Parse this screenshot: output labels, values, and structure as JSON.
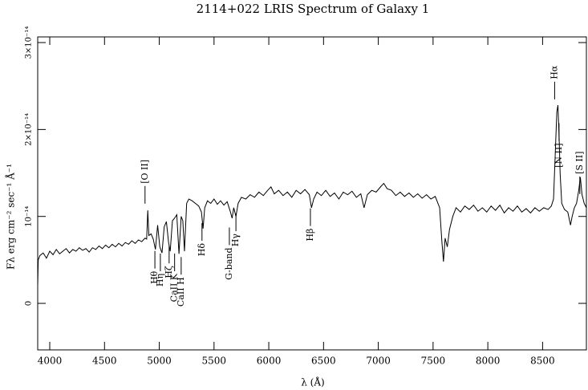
{
  "chart_data": {
    "type": "line",
    "title": "2114+022 LRIS Spectrum of Galaxy 1",
    "x_label": "λ (Å)",
    "y_label": "Fλ  erg cm⁻² sec⁻¹  Å⁻¹",
    "xlim": [
      3890,
      8900
    ],
    "ylim": [
      -5.35e-15,
      3.065e-14
    ],
    "xticks": [
      4000,
      4500,
      5000,
      5500,
      6000,
      6500,
      7000,
      7500,
      8000,
      8500
    ],
    "yticks": [
      0,
      {
        "value": 1e-14,
        "label": "10⁻¹⁴"
      },
      {
        "value": 2e-14,
        "label": "2×10⁻¹⁴"
      },
      {
        "value": 3e-14,
        "label": "3×10⁻¹⁴"
      }
    ],
    "color": "#000000",
    "x": [
      3890,
      3895,
      3910,
      3940,
      3970,
      4000,
      4030,
      4060,
      4090,
      4120,
      4150,
      4180,
      4210,
      4240,
      4270,
      4300,
      4330,
      4360,
      4390,
      4420,
      4450,
      4480,
      4510,
      4540,
      4570,
      4600,
      4630,
      4660,
      4690,
      4720,
      4750,
      4780,
      4810,
      4840,
      4870,
      4885,
      4895,
      4905,
      4925,
      4945,
      4965,
      4985,
      5005,
      5025,
      5045,
      5065,
      5085,
      5100,
      5120,
      5140,
      5160,
      5180,
      5200,
      5215,
      5230,
      5250,
      5270,
      5300,
      5330,
      5360,
      5385,
      5400,
      5415,
      5440,
      5470,
      5500,
      5530,
      5560,
      5590,
      5620,
      5650,
      5665,
      5680,
      5700,
      5720,
      5750,
      5790,
      5830,
      5870,
      5910,
      5950,
      5990,
      6020,
      6050,
      6090,
      6130,
      6170,
      6210,
      6250,
      6290,
      6330,
      6370,
      6390,
      6410,
      6440,
      6480,
      6520,
      6560,
      6600,
      6640,
      6680,
      6720,
      6760,
      6800,
      6840,
      6870,
      6900,
      6940,
      6980,
      7020,
      7050,
      7080,
      7120,
      7160,
      7200,
      7240,
      7280,
      7320,
      7360,
      7400,
      7440,
      7480,
      7520,
      7560,
      7580,
      7595,
      7610,
      7630,
      7650,
      7680,
      7710,
      7750,
      7790,
      7830,
      7870,
      7910,
      7950,
      7990,
      8030,
      8070,
      8110,
      8150,
      8190,
      8230,
      8270,
      8310,
      8350,
      8390,
      8430,
      8470,
      8510,
      8550,
      8580,
      8600,
      8615,
      8630,
      8640,
      8650,
      8660,
      8675,
      8700,
      8730,
      8755,
      8770,
      8790,
      8810,
      8830,
      8845,
      8860,
      8880,
      8900
    ],
    "values": [
      2e-15,
      5e-15,
      5.5e-15,
      5.8e-15,
      5.2e-15,
      6e-15,
      5.6e-15,
      6.2e-15,
      5.7e-15,
      6e-15,
      6.3e-15,
      5.8e-15,
      6.2e-15,
      6e-15,
      6.4e-15,
      6.1e-15,
      6.3e-15,
      5.9e-15,
      6.4e-15,
      6.2e-15,
      6.6e-15,
      6.3e-15,
      6.7e-15,
      6.4e-15,
      6.8e-15,
      6.5e-15,
      6.9e-15,
      6.6e-15,
      7e-15,
      6.8e-15,
      7.2e-15,
      6.9e-15,
      7.3e-15,
      7.1e-15,
      7.5e-15,
      7.4e-15,
      1.07e-14,
      7.8e-15,
      8e-15,
      7.4e-15,
      6.2e-15,
      9e-15,
      6.5e-15,
      5.8e-15,
      8.8e-15,
      9.4e-15,
      7e-15,
      6e-15,
      9.5e-15,
      9.8e-15,
      1.02e-14,
      5.7e-15,
      1e-14,
      9.5e-15,
      6e-15,
      1.15e-14,
      1.2e-14,
      1.18e-14,
      1.15e-14,
      1.12e-14,
      1.05e-14,
      8.6e-15,
      1.1e-14,
      1.18e-14,
      1.15e-14,
      1.2e-14,
      1.14e-14,
      1.18e-14,
      1.13e-14,
      1.17e-14,
      1.05e-14,
      9.8e-15,
      1.1e-14,
      1e-14,
      1.15e-14,
      1.22e-14,
      1.2e-14,
      1.25e-14,
      1.22e-14,
      1.28e-14,
      1.24e-14,
      1.3e-14,
      1.34e-14,
      1.26e-14,
      1.3e-14,
      1.24e-14,
      1.28e-14,
      1.22e-14,
      1.3e-14,
      1.26e-14,
      1.31e-14,
      1.25e-14,
      1.1e-14,
      1.2e-14,
      1.28e-14,
      1.24e-14,
      1.3e-14,
      1.23e-14,
      1.27e-14,
      1.2e-14,
      1.28e-14,
      1.25e-14,
      1.29e-14,
      1.22e-14,
      1.26e-14,
      1.1e-14,
      1.25e-14,
      1.3e-14,
      1.28e-14,
      1.34e-14,
      1.38e-14,
      1.32e-14,
      1.3e-14,
      1.24e-14,
      1.28e-14,
      1.23e-14,
      1.27e-14,
      1.22e-14,
      1.26e-14,
      1.21e-14,
      1.25e-14,
      1.2e-14,
      1.23e-14,
      1.1e-14,
      7.2e-15,
      4.8e-15,
      7.5e-15,
      6.5e-15,
      8.5e-15,
      1e-14,
      1.1e-14,
      1.05e-14,
      1.12e-14,
      1.08e-14,
      1.13e-14,
      1.06e-14,
      1.1e-14,
      1.05e-14,
      1.12e-14,
      1.07e-14,
      1.13e-14,
      1.04e-14,
      1.1e-14,
      1.06e-14,
      1.12e-14,
      1.05e-14,
      1.09e-14,
      1.04e-14,
      1.1e-14,
      1.06e-14,
      1.1e-14,
      1.08e-14,
      1.12e-14,
      1.2e-14,
      1.7e-14,
      2.2e-14,
      2.28e-14,
      1.95e-14,
      1.5e-14,
      1.15e-14,
      1.08e-14,
      1.05e-14,
      9e-15,
      1e-14,
      1.1e-14,
      1.15e-14,
      1.3e-14,
      1.45e-14,
      1.25e-14,
      1.15e-14,
      1.1e-14
    ],
    "annotations": [
      {
        "text": "[O II]",
        "x": 4870,
        "y": 1.35e-14
      },
      {
        "text": "Hθ",
        "x": 4960,
        "y": 4e-15
      },
      {
        "text": "Hη",
        "x": 5010,
        "y": 3.7e-15
      },
      {
        "text": "Hζ",
        "x": 5090,
        "y": 4.6e-15
      },
      {
        "text": "CaII K",
        "x": 5140,
        "y": 3.7e-15
      },
      {
        "text": "CaII H",
        "x": 5200,
        "y": 3.3e-15
      },
      {
        "text": "Hδ",
        "x": 5390,
        "y": 7.2e-15
      },
      {
        "text": "G-band",
        "x": 5640,
        "y": 6.7e-15
      },
      {
        "text": "Hγ",
        "x": 5700,
        "y": 8.3e-15
      },
      {
        "text": "Hβ",
        "x": 6380,
        "y": 8.9e-15
      },
      {
        "text": "Hα",
        "x": 8610,
        "y": 2.55e-14
      },
      {
        "text": "[N II]",
        "x": 8650,
        "y": 1.87e-14
      },
      {
        "text": "[S II]",
        "x": 8840,
        "y": 1.46e-14
      }
    ]
  }
}
